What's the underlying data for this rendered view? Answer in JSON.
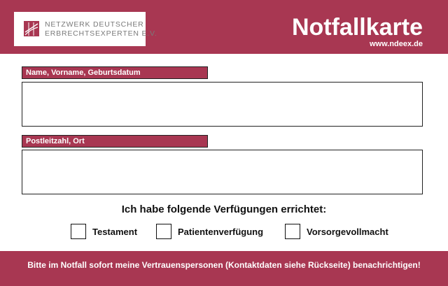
{
  "colors": {
    "brand": "#a83752",
    "text": "#111111",
    "logo_text": "#7a7a7a"
  },
  "logo": {
    "icon": "logo-mark",
    "line1": "NETZWERK DEUTSCHER",
    "line2": "ERBRECHTSEXPERTEN E.V."
  },
  "header": {
    "title": "Notfallkarte",
    "url": "www.ndeex.de"
  },
  "fields": [
    {
      "label": "Name, Vorname, Geburtsdatum",
      "value": ""
    },
    {
      "label": "Postleitzahl, Ort",
      "value": ""
    }
  ],
  "question": "Ich habe folgende Verfügungen errichtet:",
  "options": [
    {
      "label": "Testament",
      "checked": false
    },
    {
      "label": "Patientenverfügung",
      "checked": false
    },
    {
      "label": "Vorsorgevollmacht",
      "checked": false
    }
  ],
  "footer": {
    "text": "Bitte im Notfall sofort meine Vertrauenspersonen (Kontaktdaten siehe Rückseite) benachrichtigen!"
  }
}
